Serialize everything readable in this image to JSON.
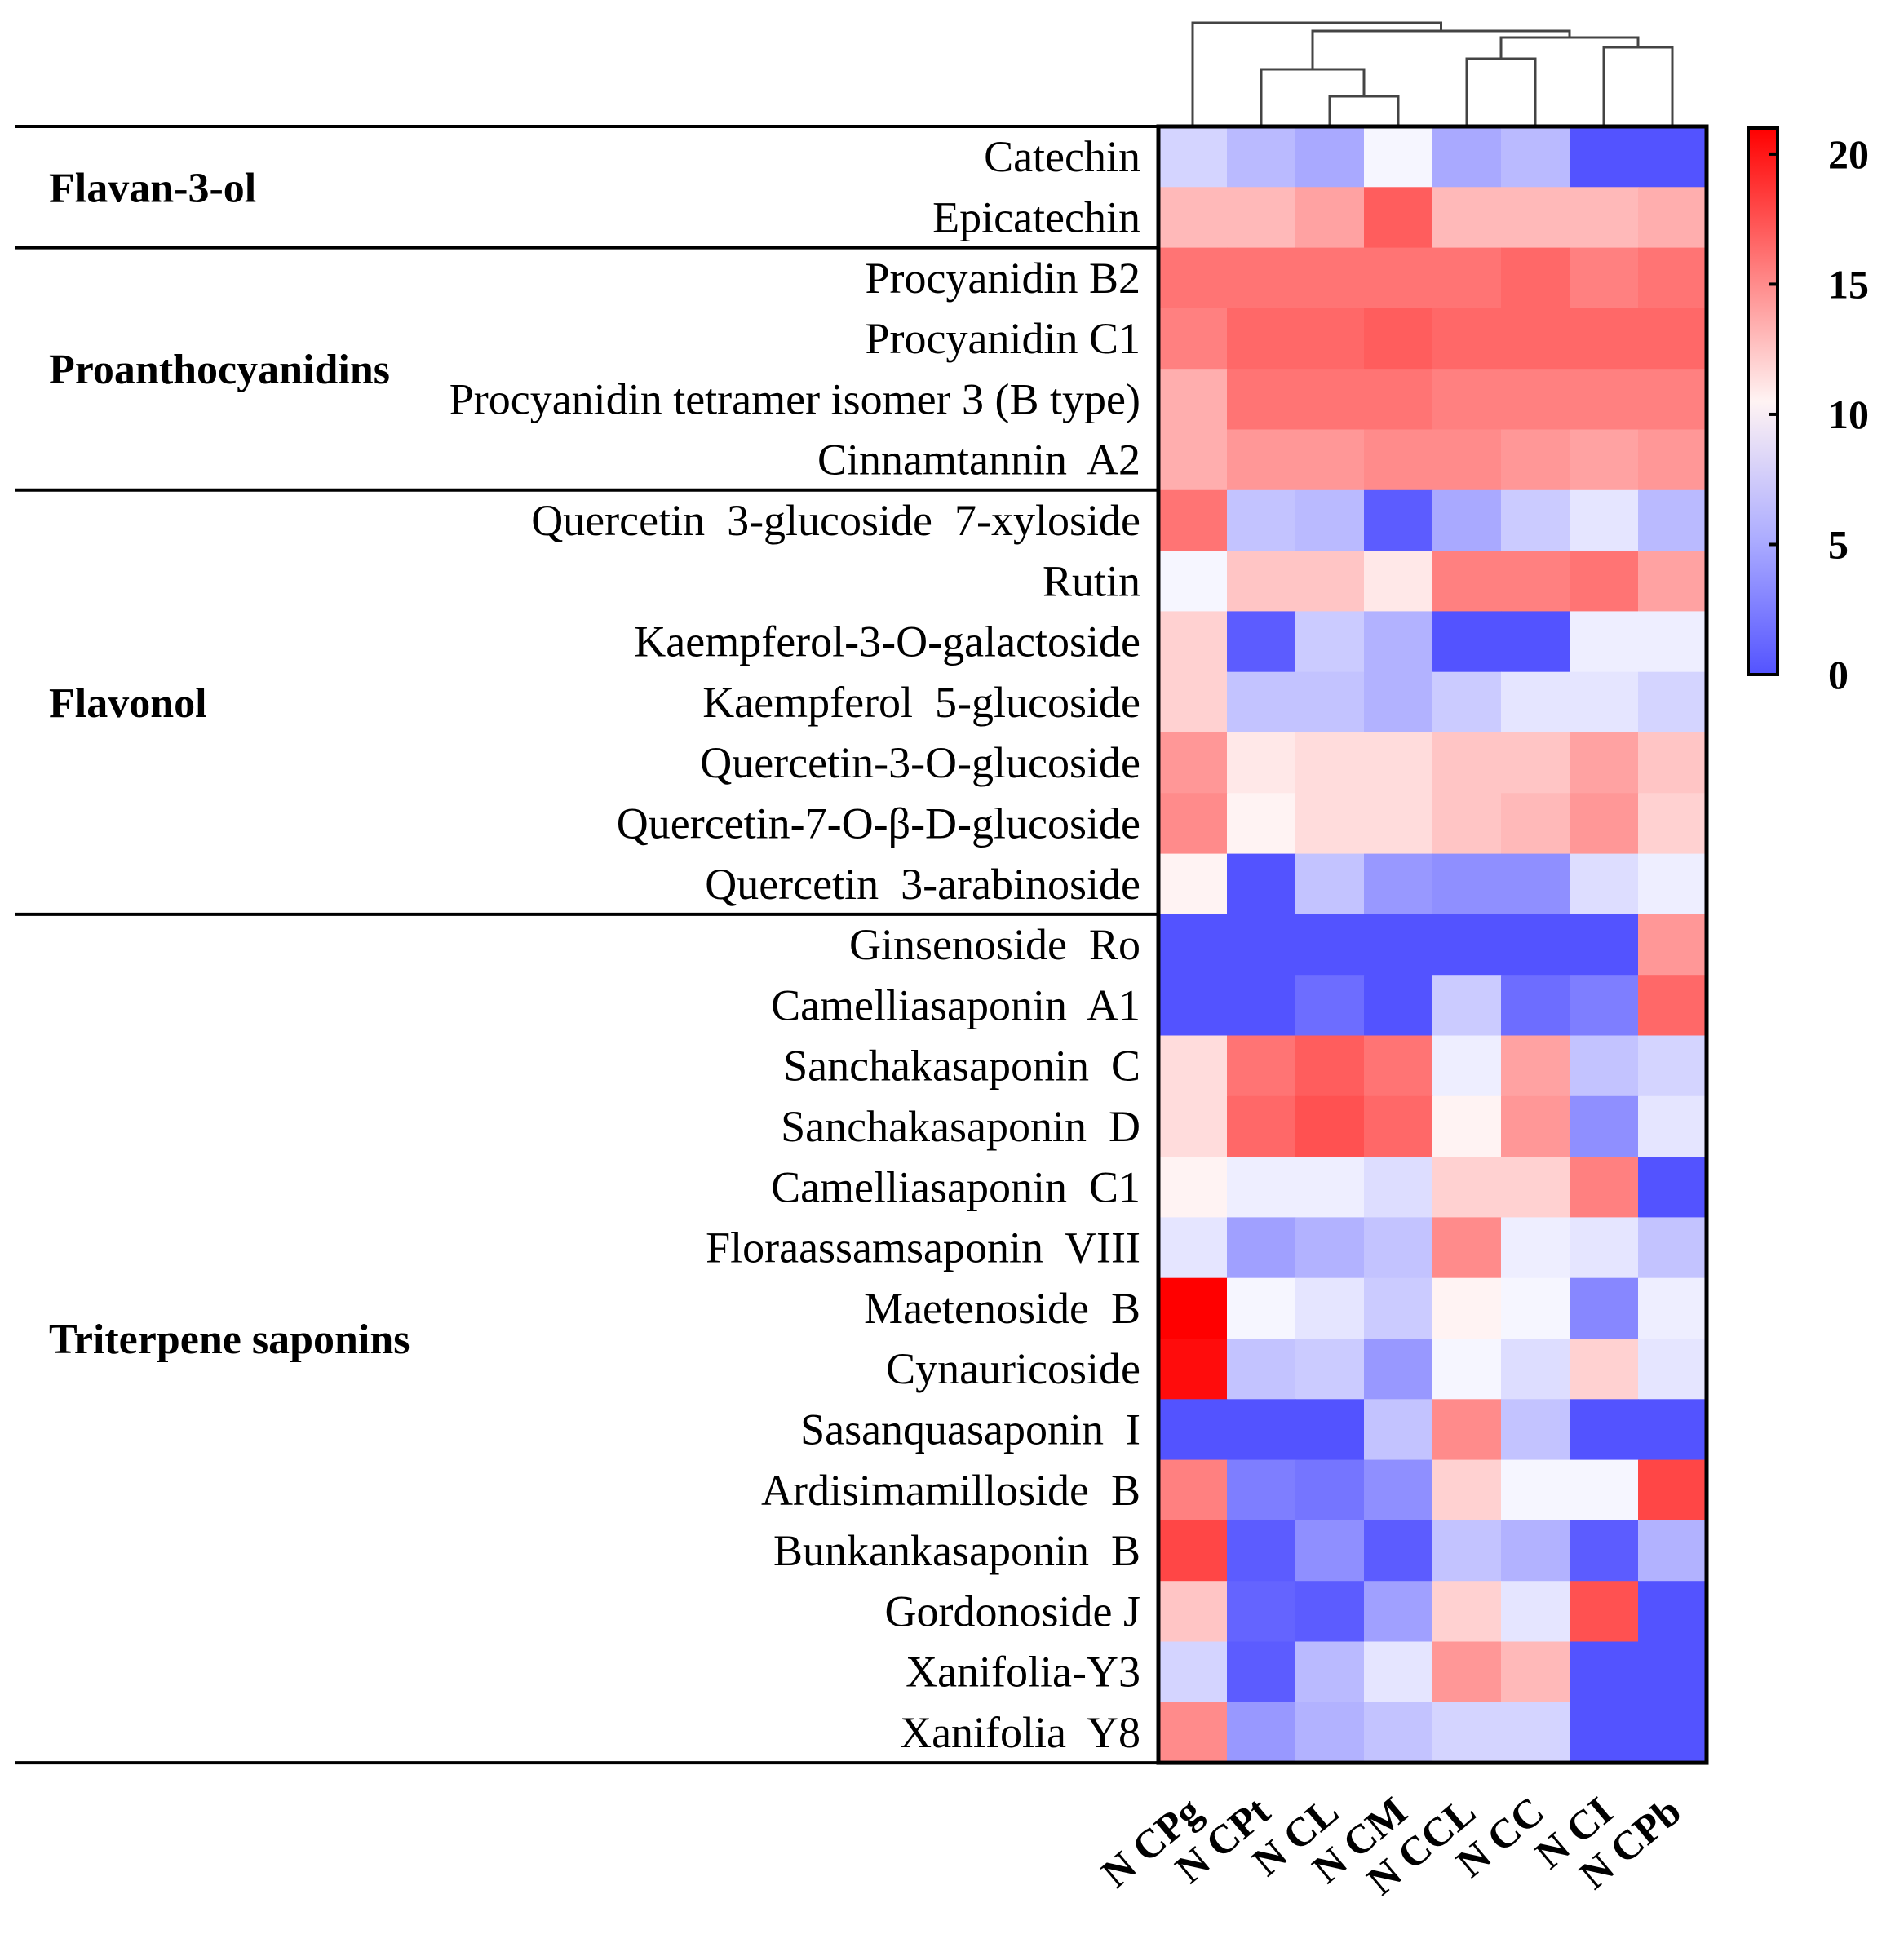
{
  "chart_data": {
    "type": "heatmap",
    "title": "",
    "columns": [
      "N CPg",
      "N CPt",
      "N CL",
      "N CM",
      "N CCL",
      "N CC",
      "N CI",
      "N CPb"
    ],
    "groups": [
      {
        "name": "Flavan-3-ol",
        "rows": [
          "Catechin",
          "Epicatechin"
        ]
      },
      {
        "name": "Proanthocyanidins",
        "rows": [
          "Procyanidin B2",
          "Procyanidin C1",
          "Procyanidin tetramer isomer 3 (B type)",
          "Cinnamtannin  A2"
        ]
      },
      {
        "name": "Flavonol",
        "rows": [
          "Quercetin  3-glucoside  7-xyloside",
          "Rutin",
          "Kaempferol-3-O-galactoside",
          "Kaempferol  5-glucoside",
          "Quercetin-3-O-glucoside",
          "Quercetin-7-O-β-D-glucoside",
          "Quercetin  3-arabinoside"
        ]
      },
      {
        "name": "Triterpene saponins",
        "rows": [
          "Ginsenoside  Ro",
          "Camelliasaponin  A1",
          "Sanchakasaponin  C",
          "Sanchakasaponin  D",
          "Camelliasaponin  C1",
          "Floraassamsaponin  VIII",
          "Maetenoside  B",
          "Cynauricoside",
          "Sasanquasaponin  I",
          "Ardisimamilloside  B",
          "Bunkankasaponin  B",
          "Gordonoside J",
          "Xanifolia-Y3",
          "Xanifolia  Y8"
        ]
      }
    ],
    "values": [
      [
        7.5,
        6,
        5,
        9.5,
        5,
        6,
        0,
        0
      ],
      [
        13,
        13,
        14,
        17,
        13,
        13,
        13,
        13.5
      ],
      [
        16,
        16,
        16,
        16,
        16,
        16.5,
        15.5,
        16
      ],
      [
        15.5,
        16.5,
        16.5,
        17,
        16.5,
        16.5,
        16.5,
        16.5
      ],
      [
        13.5,
        16,
        16,
        16,
        15.5,
        15.5,
        15.5,
        15.5
      ],
      [
        13.5,
        14.5,
        14.5,
        15,
        15,
        14.5,
        14,
        14.5
      ],
      [
        16,
        6.5,
        6,
        0.5,
        5,
        7,
        8.5,
        6
      ],
      [
        9.5,
        12.5,
        12.5,
        11,
        15.5,
        15.5,
        16,
        14
      ],
      [
        12,
        0.5,
        7,
        5.5,
        0,
        0,
        9,
        9
      ],
      [
        12,
        6.5,
        6.5,
        5.5,
        7,
        8.5,
        8.5,
        7.5
      ],
      [
        14.5,
        11,
        11.5,
        11.5,
        12.5,
        12.5,
        14,
        12.5
      ],
      [
        15,
        10.5,
        11.5,
        11.5,
        12.5,
        13,
        14.5,
        12
      ],
      [
        10.5,
        0,
        6.5,
        4,
        3.5,
        3.5,
        8,
        9
      ],
      [
        0,
        0,
        0,
        0,
        0,
        0,
        0,
        14.5
      ],
      [
        0,
        0,
        1.5,
        0,
        7,
        1.5,
        2.5,
        16.5
      ],
      [
        11.5,
        16,
        17,
        16,
        9,
        14,
        6.5,
        7.5
      ],
      [
        11.5,
        16.5,
        17.5,
        16.5,
        10.5,
        14.5,
        3.5,
        8.5
      ],
      [
        10.5,
        9,
        9,
        8,
        12,
        12,
        15.5,
        0
      ],
      [
        8.5,
        4.5,
        5.5,
        6.5,
        15,
        9,
        8.5,
        6.5
      ],
      [
        21,
        9.5,
        8.5,
        7,
        10.5,
        9.5,
        3,
        9
      ],
      [
        20.5,
        6.5,
        7,
        4,
        9.5,
        8,
        12,
        8.5
      ],
      [
        0,
        0,
        0,
        6.5,
        15,
        6.5,
        0,
        0
      ],
      [
        15.5,
        2.5,
        2,
        3.5,
        12,
        9.5,
        9.5,
        18
      ],
      [
        18,
        0.5,
        3.5,
        0.5,
        6.5,
        5.5,
        0.5,
        5.5
      ],
      [
        12.5,
        1,
        0.5,
        4.5,
        12,
        8.5,
        17.5,
        0
      ],
      [
        7.5,
        0.5,
        6,
        8.5,
        14.5,
        13,
        0,
        0
      ],
      [
        15,
        4,
        5.5,
        6.5,
        7.5,
        7.5,
        0,
        0
      ]
    ],
    "colorscale": {
      "min": 0,
      "mid": 10,
      "max": 21,
      "low_color": "#5353ff",
      "mid_color": "#ffffff",
      "high_color": "#ff0000"
    },
    "colorbar": {
      "ticks": [
        "20",
        "15",
        "10",
        "5",
        "0"
      ],
      "tick_values": [
        20,
        15,
        10,
        5,
        0
      ],
      "range": [
        0,
        21
      ]
    },
    "dendrogram": "columns clustered (hierarchical)"
  }
}
